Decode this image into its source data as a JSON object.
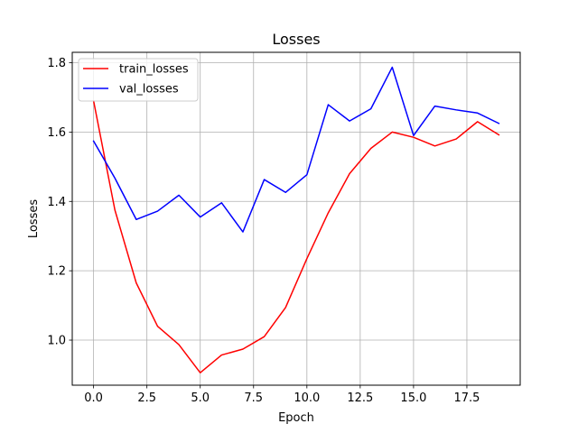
{
  "chart_data": {
    "type": "line",
    "title": "Losses",
    "xlabel": "Epoch",
    "ylabel": "Losses",
    "xlim": [
      -1.0,
      20.0
    ],
    "ylim": [
      0.87,
      1.83
    ],
    "xticks": [
      0.0,
      2.5,
      5.0,
      7.5,
      10.0,
      12.5,
      15.0,
      17.5
    ],
    "xtick_labels": [
      "0.0",
      "2.5",
      "5.0",
      "7.5",
      "10.0",
      "12.5",
      "15.0",
      "17.5"
    ],
    "yticks": [
      1.0,
      1.2,
      1.4,
      1.6,
      1.8
    ],
    "ytick_labels": [
      "1.0",
      "1.2",
      "1.4",
      "1.6",
      "1.8"
    ],
    "grid": true,
    "legend_position": "top-left",
    "x": [
      0,
      1,
      2,
      3,
      4,
      5,
      6,
      7,
      8,
      9,
      10,
      11,
      12,
      13,
      14,
      15,
      16,
      17,
      18,
      19
    ],
    "series": [
      {
        "name": "train_losses",
        "color": "#ff0000",
        "values": [
          1.69,
          1.375,
          1.165,
          1.04,
          0.987,
          0.906,
          0.957,
          0.974,
          1.01,
          1.094,
          1.235,
          1.367,
          1.48,
          1.553,
          1.6,
          1.585,
          1.56,
          1.58,
          1.63,
          1.592
        ]
      },
      {
        "name": "val_losses",
        "color": "#0000ff",
        "values": [
          1.574,
          1.467,
          1.348,
          1.372,
          1.418,
          1.355,
          1.396,
          1.312,
          1.463,
          1.426,
          1.477,
          1.679,
          1.632,
          1.667,
          1.787,
          1.59,
          1.675,
          1.664,
          1.655,
          1.625
        ]
      }
    ]
  }
}
